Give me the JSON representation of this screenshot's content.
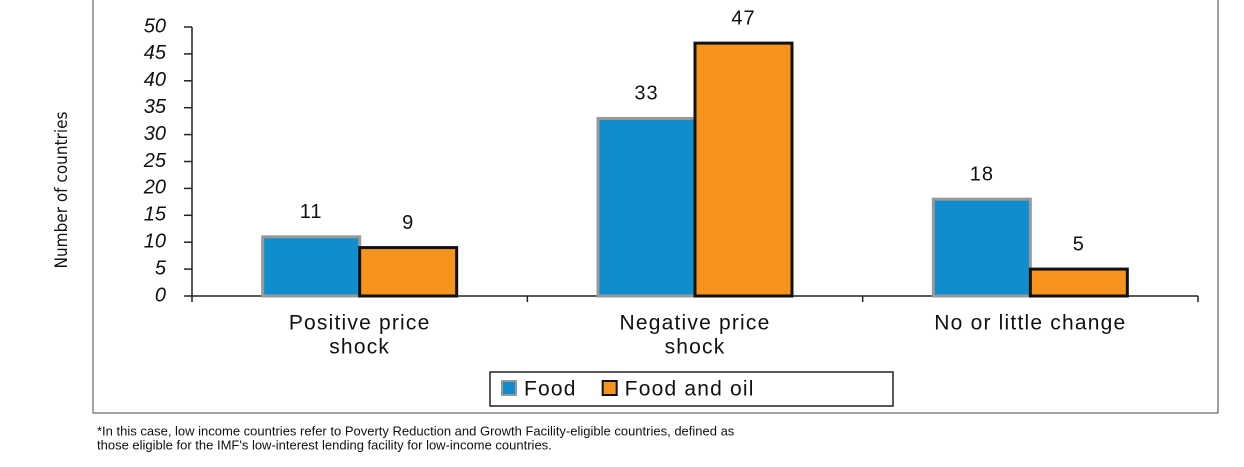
{
  "chart_data": {
    "type": "bar",
    "y_axis_label": "Number of countries",
    "categories": [
      [
        "Positive price",
        "shock"
      ],
      [
        "Negative price",
        "shock"
      ],
      [
        "No or little change"
      ]
    ],
    "series": [
      {
        "name": "Food",
        "color": "#0f8dcc",
        "values": [
          11,
          33,
          18
        ]
      },
      {
        "name": "Food and oil",
        "color": "#f7941d",
        "values": [
          9,
          47,
          5
        ]
      }
    ],
    "ylim": [
      0,
      50
    ],
    "yticks": [
      0,
      5,
      10,
      15,
      20,
      25,
      30,
      35,
      40,
      45,
      50
    ],
    "legend": "bottom",
    "footnote": [
      "*In this case, low income countries refer to Poverty Reduction and Growth Facility-eligible countries, defined as",
      "those eligible for the IMF's low-interest lending facility for low-income countries."
    ]
  }
}
